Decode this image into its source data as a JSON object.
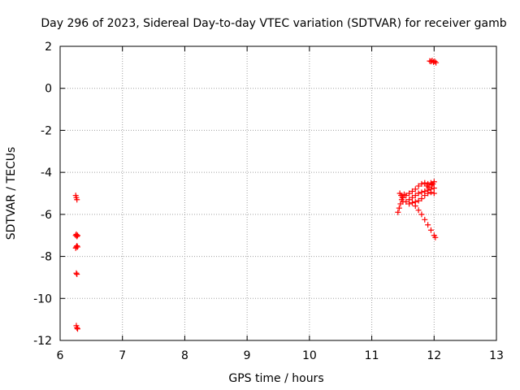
{
  "chart_data": {
    "type": "scatter",
    "title": "Day 296 of 2023, Sidereal Day-to-day VTEC variation (SDTVAR) for receiver gamb",
    "xlabel": "GPS time / hours",
    "ylabel": "SDTVAR / TECUs",
    "xlim": [
      6,
      13
    ],
    "ylim": [
      -12,
      2
    ],
    "x_ticks": [
      "6",
      "7",
      "8",
      "9",
      "10",
      "11",
      "12",
      "13"
    ],
    "y_ticks": [
      "2",
      "0",
      "-2",
      "-4",
      "-6",
      "-8",
      "-10",
      "-12"
    ],
    "grid": true,
    "marker": "+",
    "colors": {
      "series": "#ff0000",
      "grid": "#a0a0a0",
      "axis": "#000000"
    },
    "series": [
      {
        "points": [
          [
            6.25,
            -5.1
          ],
          [
            6.26,
            -5.2
          ],
          [
            6.27,
            -5.3
          ],
          [
            6.25,
            -7.0
          ],
          [
            6.26,
            -6.95
          ],
          [
            6.27,
            -7.05
          ],
          [
            6.28,
            -7.0
          ],
          [
            6.25,
            -7.6
          ],
          [
            6.26,
            -7.55
          ],
          [
            6.27,
            -7.5
          ],
          [
            6.28,
            -7.55
          ],
          [
            6.26,
            -8.8
          ],
          [
            6.27,
            -8.85
          ],
          [
            6.26,
            -11.3
          ],
          [
            6.27,
            -11.4
          ],
          [
            6.28,
            -11.45
          ],
          [
            11.42,
            -5.9
          ],
          [
            11.44,
            -5.7
          ],
          [
            11.46,
            -5.5
          ],
          [
            11.48,
            -5.3
          ],
          [
            11.5,
            -5.2
          ],
          [
            11.52,
            -5.05
          ],
          [
            11.45,
            -5.0
          ],
          [
            11.47,
            -5.1
          ],
          [
            11.49,
            -5.2
          ],
          [
            11.5,
            -5.4
          ],
          [
            11.55,
            -5.1
          ],
          [
            11.6,
            -5.0
          ],
          [
            11.65,
            -4.9
          ],
          [
            11.7,
            -4.8
          ],
          [
            11.75,
            -4.65
          ],
          [
            11.8,
            -4.55
          ],
          [
            11.85,
            -4.5
          ],
          [
            11.9,
            -4.55
          ],
          [
            11.95,
            -4.5
          ],
          [
            12.0,
            -4.45
          ],
          [
            11.55,
            -5.4
          ],
          [
            11.6,
            -5.3
          ],
          [
            11.65,
            -5.2
          ],
          [
            11.7,
            -5.1
          ],
          [
            11.75,
            -5.0
          ],
          [
            11.8,
            -4.95
          ],
          [
            11.85,
            -4.9
          ],
          [
            11.9,
            -4.85
          ],
          [
            11.95,
            -4.8
          ],
          [
            12.0,
            -4.75
          ],
          [
            11.6,
            -5.5
          ],
          [
            11.65,
            -5.45
          ],
          [
            11.7,
            -5.4
          ],
          [
            11.75,
            -5.35
          ],
          [
            11.8,
            -5.25
          ],
          [
            11.85,
            -5.1
          ],
          [
            11.9,
            -5.0
          ],
          [
            11.95,
            -4.95
          ],
          [
            12.0,
            -5.0
          ],
          [
            11.7,
            -5.6
          ],
          [
            11.75,
            -5.8
          ],
          [
            11.8,
            -6.0
          ],
          [
            11.85,
            -6.25
          ],
          [
            11.9,
            -6.5
          ],
          [
            11.95,
            -6.75
          ],
          [
            12.0,
            -7.0
          ],
          [
            12.02,
            -7.1
          ],
          [
            11.88,
            -4.65
          ],
          [
            11.92,
            -4.7
          ],
          [
            11.96,
            -4.6
          ],
          [
            11.98,
            -4.55
          ],
          [
            11.93,
            1.3
          ],
          [
            11.95,
            1.28
          ],
          [
            11.97,
            1.32
          ],
          [
            11.99,
            1.25
          ],
          [
            12.01,
            1.28
          ],
          [
            12.03,
            1.22
          ]
        ]
      }
    ]
  }
}
